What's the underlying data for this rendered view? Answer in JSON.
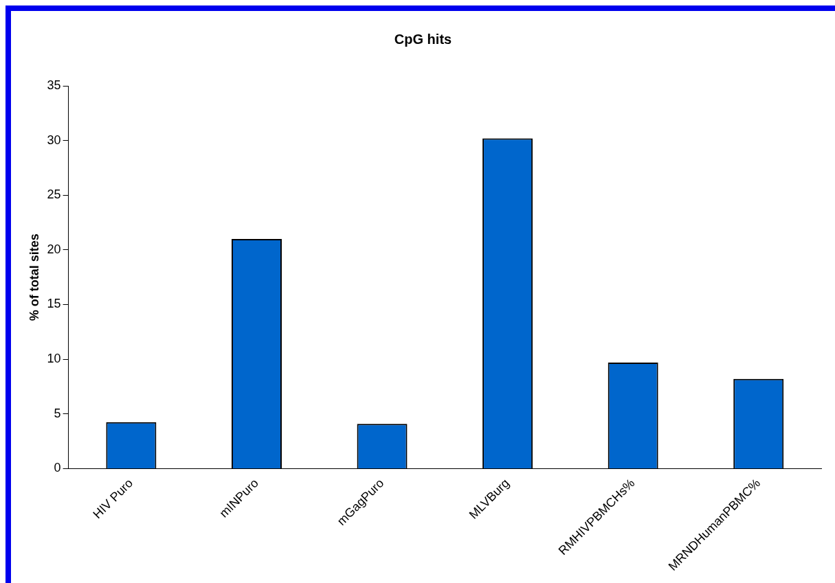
{
  "chart_data": {
    "type": "bar",
    "title": "CpG hits",
    "ylabel": "% of total sites",
    "categories": [
      "HIV Puro",
      "mINPuro",
      "mGagPuro",
      "MLVBurg",
      "RMHIVPBMCHs%",
      "MRNDHumanPBMC%"
    ],
    "values": [
      4.25,
      21.0,
      4.1,
      30.2,
      9.7,
      8.2
    ],
    "color": "#0066cc",
    "ylim": [
      0,
      35
    ],
    "yticks": [
      0,
      5,
      10,
      15,
      20,
      25,
      30,
      35
    ],
    "grid": false,
    "legend": false
  }
}
